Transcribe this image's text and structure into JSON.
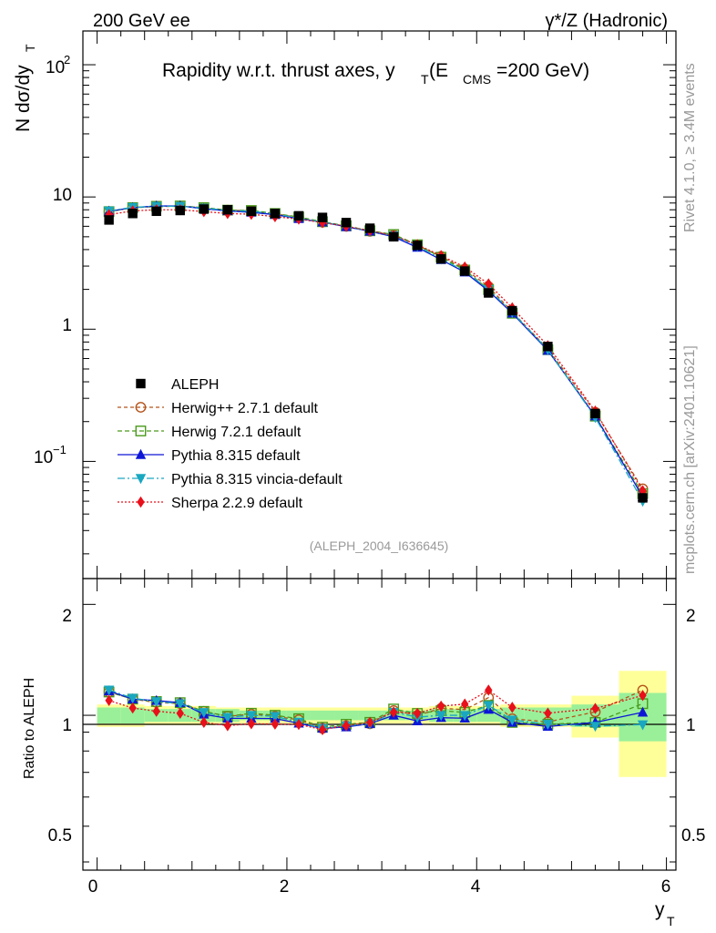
{
  "header": {
    "left": "200 GeV ee",
    "right": "γ*/Z (Hadronic)"
  },
  "main": {
    "title_main": "Rapidity w.r.t. thrust axes, y",
    "title_sub_T": "T",
    "title_paren_open": " (E",
    "title_sub_cms": "CMS",
    "title_tail": "=200 GeV)",
    "ylabel_main": "N  dσ/dy",
    "ylabel_sub": "T",
    "analysis_tag": "(ALEPH_2004_I636645)"
  },
  "ratio": {
    "ylabel": "Ratio to ALEPH"
  },
  "xaxis": {
    "label": "y",
    "label_sub": "T"
  },
  "side": {
    "rivet": "Rivet 4.1.0, ≥ 3.4M events",
    "mcplots": "mcplots.cern.ch [arXiv:2401.10621]"
  },
  "main_yticks": {
    "t100": "10",
    "t100_exp": "2",
    "t10": "10",
    "t1": "1",
    "t01": "10",
    "t01_exp": "−1"
  },
  "ratio_yticks": {
    "r2": "2",
    "r1": "1",
    "r05": "0.5"
  },
  "xticks": [
    "0",
    "2",
    "4",
    "6"
  ],
  "chart_data": {
    "type": "scatter",
    "title": "Rapidity w.r.t. thrust axes, y_T (E_CMS=200 GeV)",
    "xlabel": "y_T",
    "ylabel": "N dσ/dy_T",
    "yscale": "log",
    "xlim": [
      -0.15,
      6.1
    ],
    "ylim": [
      0.013,
      180
    ],
    "ratio_ylim": [
      0.38,
      2.35
    ],
    "x": [
      0.125,
      0.375,
      0.625,
      0.875,
      1.125,
      1.375,
      1.625,
      1.875,
      2.125,
      2.375,
      2.625,
      2.875,
      3.125,
      3.375,
      3.625,
      3.875,
      4.125,
      4.375,
      4.75,
      5.25,
      5.75
    ],
    "band_edges": [
      0,
      0.25,
      0.5,
      0.75,
      1,
      1.25,
      1.5,
      1.75,
      2,
      2.25,
      2.5,
      2.75,
      3,
      3.25,
      3.5,
      3.75,
      4,
      4.25,
      4.5,
      5,
      5.5,
      6
    ],
    "band_inner": [
      0.05,
      0.05,
      0.04,
      0.04,
      0.04,
      0.04,
      0.03,
      0.03,
      0.03,
      0.03,
      0.03,
      0.03,
      0.03,
      0.03,
      0.04,
      0.04,
      0.04,
      0.05,
      0.05,
      0.07,
      0.15
    ],
    "band_outer": [
      0.07,
      0.07,
      0.06,
      0.06,
      0.06,
      0.05,
      0.05,
      0.05,
      0.05,
      0.05,
      0.05,
      0.05,
      0.05,
      0.05,
      0.06,
      0.06,
      0.06,
      0.07,
      0.07,
      0.13,
      0.32
    ],
    "data": {
      "name": "ALEPH",
      "values": [
        6.7,
        7.5,
        7.8,
        7.9,
        8.1,
        8.0,
        7.8,
        7.5,
        7.2,
        7.0,
        6.4,
        5.8,
        5.0,
        4.3,
        3.4,
        2.75,
        1.88,
        1.38,
        0.74,
        0.23,
        0.053
      ]
    },
    "series": [
      {
        "name": "Herwig++ 2.7.1 default",
        "color": "#b5541b",
        "marker": "circle-open",
        "dash": "4,3",
        "values": [
          7.75,
          8.3,
          8.45,
          8.5,
          8.3,
          7.95,
          7.85,
          7.45,
          7.0,
          6.45,
          6.0,
          5.5,
          5.15,
          4.3,
          3.55,
          2.85,
          2.1,
          1.35,
          0.71,
          0.235,
          0.062
        ]
      },
      {
        "name": "Herwig 7.2.1 default",
        "color": "#4a9a1c",
        "marker": "square-open",
        "dash": "5,3",
        "values": [
          7.75,
          8.3,
          8.5,
          8.55,
          8.3,
          7.95,
          7.9,
          7.5,
          7.05,
          6.5,
          6.05,
          5.55,
          5.2,
          4.35,
          3.5,
          2.8,
          2.0,
          1.32,
          0.7,
          0.22,
          0.057
        ]
      },
      {
        "name": "Pythia 8.315 default",
        "color": "#0d16d6",
        "marker": "triangle-up",
        "dash": "",
        "values": [
          7.8,
          8.3,
          8.55,
          8.55,
          8.15,
          7.85,
          7.65,
          7.35,
          6.85,
          6.45,
          5.95,
          5.5,
          5.0,
          4.15,
          3.35,
          2.7,
          1.95,
          1.32,
          0.69,
          0.22,
          0.054
        ]
      },
      {
        "name": "Pythia 8.315 vincia-default",
        "color": "#1aa7c0",
        "marker": "triangle-down",
        "dash": "8,3,2,3",
        "values": [
          7.85,
          8.35,
          8.5,
          8.5,
          8.25,
          7.9,
          7.8,
          7.45,
          6.9,
          6.45,
          6.0,
          5.5,
          5.1,
          4.25,
          3.4,
          2.75,
          2.0,
          1.34,
          0.7,
          0.215,
          0.05
        ]
      },
      {
        "name": "Sherpa 2.2.9 default",
        "color": "#e8101a",
        "marker": "diamond",
        "dash": "2,2",
        "values": [
          7.35,
          7.85,
          8.0,
          8.0,
          7.75,
          7.5,
          7.4,
          7.1,
          6.8,
          6.4,
          6.0,
          5.55,
          5.1,
          4.35,
          3.6,
          2.95,
          2.2,
          1.45,
          0.75,
          0.24,
          0.06
        ]
      }
    ]
  }
}
